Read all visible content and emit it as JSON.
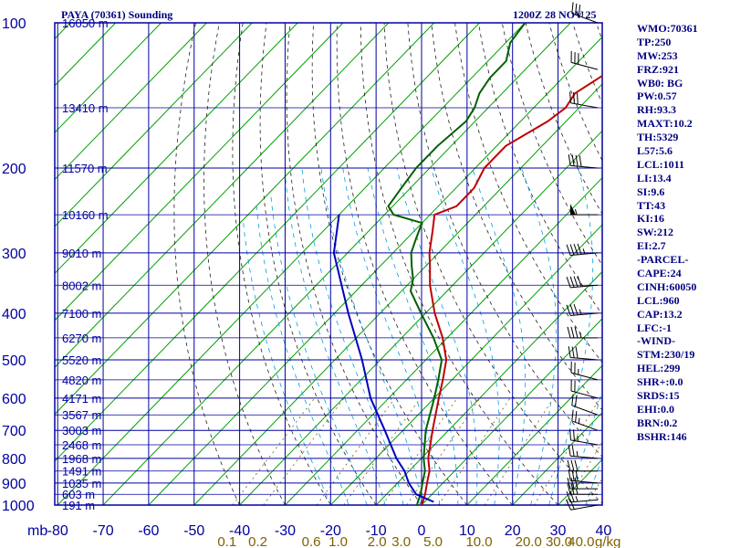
{
  "header": {
    "title": "PAYA (70361) Sounding",
    "time": "1200Z 28 NOV 25"
  },
  "indices": [
    "WMO:70361",
    "TP:250",
    "MW:253",
    "FRZ:921",
    "WB0: BG",
    "PW:0.57",
    "RH:93.3",
    "MAXT:10.2",
    "TH:5329",
    "L57:5.6",
    "LCL:1011",
    "LI:13.4",
    "SI:9.6",
    "TT:43",
    "KI:16",
    "SW:212",
    "EI:2.7",
    "-PARCEL-",
    "CAPE:24",
    "CINH:60050",
    "LCL:960",
    "CAP:13.2",
    "LFC:-1",
    "-WIND-",
    "STM:230/19",
    "HEL:299",
    "SHR+:0.0",
    "SRDS:15",
    "EHI:0.0",
    "BRN:0.2",
    "BSHR:146"
  ],
  "colors": {
    "frame": "#0000a0",
    "isotherm": "#00a000",
    "dry_adiabat": "#202020",
    "moist_adiabat": "#00a0e0",
    "temperature": "#c00000",
    "dewpoint": "#006000",
    "parcel": "#0000c0",
    "mixing_label": "#806000",
    "wind_barb": "#000000"
  },
  "chart_data": {
    "type": "line",
    "title": "PAYA (70361) Sounding",
    "subtitle": "1200Z 28 NOV 25",
    "xlabel": "",
    "ylabel": "mb",
    "x_unit_label": "g/kg",
    "xlim": [
      -80,
      40
    ],
    "ylim": [
      1000,
      100
    ],
    "y_scale": "log",
    "grid": true,
    "pressure_ticks": [
      100,
      200,
      300,
      400,
      500,
      600,
      700,
      800,
      900,
      1000
    ],
    "temperature_ticks": [
      -80,
      -70,
      -60,
      -50,
      -40,
      -30,
      -20,
      -10,
      0,
      10,
      20,
      30,
      40
    ],
    "mixing_ratio_labels": [
      "0.1",
      "0.2",
      "0.6",
      "1.0",
      "2.0",
      "3.0",
      "5.0",
      "10.0",
      "20.0",
      "30.0",
      "40.0"
    ],
    "height_labels": [
      {
        "p": 1000,
        "label": "191 m"
      },
      {
        "p": 950,
        "label": "603 m"
      },
      {
        "p": 900,
        "label": "1035 m"
      },
      {
        "p": 850,
        "label": "1491 m"
      },
      {
        "p": 800,
        "label": "1968 m"
      },
      {
        "p": 750,
        "label": "2468 m"
      },
      {
        "p": 700,
        "label": "3003 m"
      },
      {
        "p": 650,
        "label": "3567 m"
      },
      {
        "p": 600,
        "label": "4171 m"
      },
      {
        "p": 550,
        "label": "4820 m"
      },
      {
        "p": 500,
        "label": "5520 m"
      },
      {
        "p": 450,
        "label": "6270 m"
      },
      {
        "p": 400,
        "label": "7100 m"
      },
      {
        "p": 350,
        "label": "8002 m"
      },
      {
        "p": 300,
        "label": "9010 m"
      },
      {
        "p": 250,
        "label": "10160 m"
      },
      {
        "p": 200,
        "label": "11570 m"
      },
      {
        "p": 150,
        "label": "13410 m"
      },
      {
        "p": 100,
        "label": "16050 m"
      }
    ],
    "series": [
      {
        "name": "Temperature",
        "points": [
          [
            1000,
            0.0
          ],
          [
            985,
            -0.4
          ],
          [
            950,
            -1.5
          ],
          [
            900,
            -3.5
          ],
          [
            850,
            -5.5
          ],
          [
            800,
            -8.5
          ],
          [
            700,
            -13.5
          ],
          [
            600,
            -19
          ],
          [
            550,
            -22
          ],
          [
            500,
            -25.5
          ],
          [
            450,
            -31
          ],
          [
            400,
            -38
          ],
          [
            350,
            -45
          ],
          [
            320,
            -49
          ],
          [
            300,
            -52
          ],
          [
            270,
            -56
          ],
          [
            250,
            -59
          ],
          [
            240,
            -56
          ],
          [
            220,
            -56
          ],
          [
            200,
            -58
          ],
          [
            180,
            -58
          ],
          [
            160,
            -54
          ],
          [
            150,
            -53
          ],
          [
            140,
            -54
          ],
          [
            130,
            -52
          ],
          [
            120,
            -50
          ],
          [
            110,
            -49
          ],
          [
            100,
            -49
          ]
        ]
      },
      {
        "name": "Dewpoint",
        "points": [
          [
            1000,
            -1.0
          ],
          [
            985,
            -1.5
          ],
          [
            950,
            -2.5
          ],
          [
            900,
            -4.5
          ],
          [
            850,
            -6.5
          ],
          [
            800,
            -9.5
          ],
          [
            700,
            -15
          ],
          [
            600,
            -20
          ],
          [
            550,
            -23
          ],
          [
            500,
            -26.5
          ],
          [
            450,
            -33
          ],
          [
            400,
            -41
          ],
          [
            360,
            -48
          ],
          [
            340,
            -50
          ],
          [
            320,
            -53
          ],
          [
            300,
            -56
          ],
          [
            280,
            -58
          ],
          [
            260,
            -60
          ],
          [
            250,
            -68
          ],
          [
            240,
            -71
          ],
          [
            220,
            -72
          ],
          [
            200,
            -73
          ],
          [
            180,
            -73
          ],
          [
            160,
            -72
          ],
          [
            150,
            -73
          ],
          [
            140,
            -75
          ],
          [
            130,
            -76
          ],
          [
            120,
            -76
          ],
          [
            110,
            -79
          ],
          [
            100,
            -80
          ]
        ]
      },
      {
        "name": "Parcel",
        "points": [
          [
            985,
            2.0
          ],
          [
            950,
            -3.5
          ],
          [
            900,
            -7.5
          ],
          [
            850,
            -11
          ],
          [
            800,
            -15.5
          ],
          [
            700,
            -24
          ],
          [
            600,
            -34
          ],
          [
            500,
            -44
          ],
          [
            400,
            -57
          ],
          [
            300,
            -73
          ],
          [
            250,
            -80
          ]
        ]
      }
    ],
    "wind_barbs": [
      {
        "p": 1000,
        "dir": 260,
        "spd": 20
      },
      {
        "p": 975,
        "dir": 265,
        "spd": 25
      },
      {
        "p": 950,
        "dir": 270,
        "spd": 25
      },
      {
        "p": 925,
        "dir": 270,
        "spd": 30
      },
      {
        "p": 900,
        "dir": 275,
        "spd": 30
      },
      {
        "p": 850,
        "dir": 270,
        "spd": 30
      },
      {
        "p": 800,
        "dir": 275,
        "spd": 25
      },
      {
        "p": 750,
        "dir": 280,
        "spd": 25
      },
      {
        "p": 700,
        "dir": 290,
        "spd": 25
      },
      {
        "p": 650,
        "dir": 290,
        "spd": 20
      },
      {
        "p": 600,
        "dir": 285,
        "spd": 20
      },
      {
        "p": 550,
        "dir": 285,
        "spd": 25
      },
      {
        "p": 500,
        "dir": 275,
        "spd": 30
      },
      {
        "p": 450,
        "dir": 270,
        "spd": 35
      },
      {
        "p": 400,
        "dir": 265,
        "spd": 35
      },
      {
        "p": 350,
        "dir": 265,
        "spd": 40
      },
      {
        "p": 300,
        "dir": 265,
        "spd": 45
      },
      {
        "p": 250,
        "dir": 270,
        "spd": 55
      },
      {
        "p": 200,
        "dir": 275,
        "spd": 40
      },
      {
        "p": 150,
        "dir": 280,
        "spd": 30
      },
      {
        "p": 125,
        "dir": 285,
        "spd": 30
      },
      {
        "p": 100,
        "dir": 290,
        "spd": 35
      }
    ]
  }
}
